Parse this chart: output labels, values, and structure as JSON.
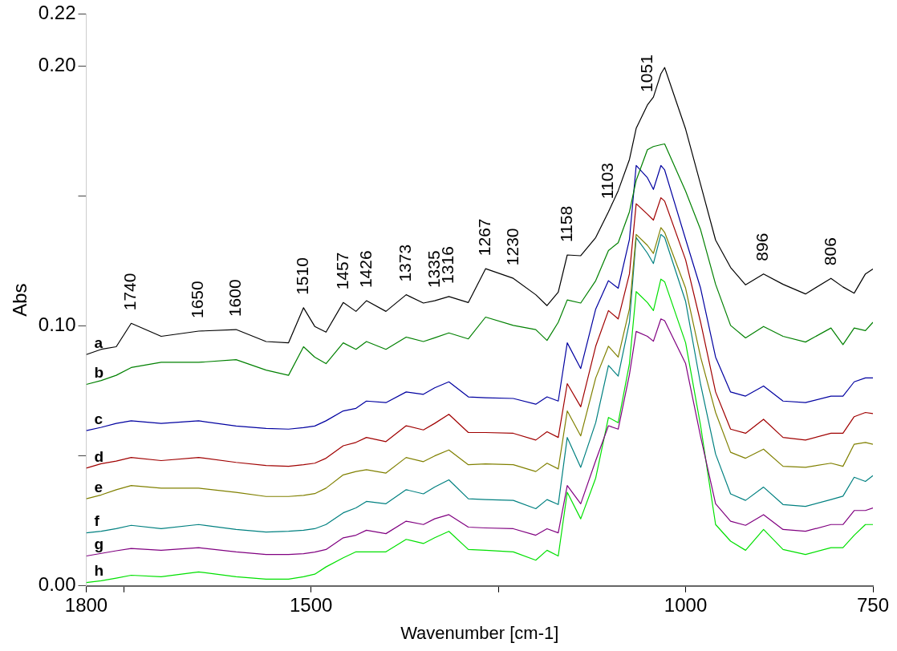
{
  "chart_data": {
    "type": "line",
    "xlabel": "Wavenumber [cm-1]",
    "ylabel": "Abs",
    "x": [
      1800,
      1780,
      1760,
      1740,
      1700,
      1650,
      1600,
      1560,
      1530,
      1510,
      1495,
      1480,
      1457,
      1440,
      1426,
      1400,
      1373,
      1350,
      1335,
      1316,
      1290,
      1267,
      1230,
      1200,
      1185,
      1170,
      1158,
      1140,
      1120,
      1103,
      1090,
      1075,
      1066,
      1051,
      1043,
      1033,
      1028,
      1000,
      980,
      960,
      940,
      920,
      896,
      870,
      840,
      806,
      790,
      775,
      760,
      750
    ],
    "xlim": [
      1800,
      750
    ],
    "xticks": [
      1800,
      {
        "value": 1750,
        "label": null
      },
      1500,
      {
        "value": 1250,
        "label": null
      },
      1000,
      750
    ],
    "ylim": [
      0,
      0.22
    ],
    "yticks": [
      {
        "value": 0,
        "label": "0.00"
      },
      {
        "value": 0.05,
        "label": null
      },
      {
        "value": 0.1,
        "label": "0.10"
      },
      {
        "value": 0.15,
        "label": null
      },
      {
        "value": 0.2,
        "label": "0.20"
      },
      0.22
    ],
    "grid": false,
    "legend": false,
    "marker": "none",
    "line_style": "solid",
    "series": [
      {
        "name": "a",
        "color": "#000000",
        "values": [
          0.089,
          0.091,
          0.092,
          0.101,
          0.096,
          0.098,
          0.0986,
          0.094,
          0.0935,
          0.107,
          0.0998,
          0.0976,
          0.109,
          0.1056,
          0.1097,
          0.1056,
          0.112,
          0.1088,
          0.1097,
          0.1113,
          0.109,
          0.122,
          0.1183,
          0.112,
          0.1078,
          0.113,
          0.1273,
          0.127,
          0.134,
          0.1439,
          0.152,
          0.164,
          0.176,
          0.185,
          0.188,
          0.197,
          0.1994,
          0.1757,
          0.1544,
          0.133,
          0.1225,
          0.1158,
          0.12,
          0.116,
          0.1123,
          0.1183,
          0.115,
          0.1126,
          0.12,
          0.1219
        ]
      },
      {
        "name": "b",
        "color": "#008000",
        "values": [
          0.0775,
          0.079,
          0.081,
          0.084,
          0.086,
          0.086,
          0.087,
          0.083,
          0.081,
          0.092,
          0.088,
          0.0855,
          0.0935,
          0.091,
          0.094,
          0.091,
          0.0957,
          0.094,
          0.0954,
          0.0973,
          0.095,
          0.1034,
          0.1002,
          0.0986,
          0.0944,
          0.1014,
          0.11,
          0.1088,
          0.1174,
          0.129,
          0.132,
          0.1439,
          0.156,
          0.1678,
          0.169,
          0.1697,
          0.17,
          0.1518,
          0.137,
          0.116,
          0.1002,
          0.0954,
          0.0998,
          0.096,
          0.0938,
          0.0992,
          0.0928,
          0.0992,
          0.0982,
          0.1014
        ]
      },
      {
        "name": "c",
        "color": "#0000a0",
        "values": [
          0.0597,
          0.061,
          0.0625,
          0.0635,
          0.0625,
          0.0635,
          0.0615,
          0.0606,
          0.0603,
          0.0609,
          0.0615,
          0.0635,
          0.0673,
          0.0683,
          0.0711,
          0.0705,
          0.0746,
          0.0737,
          0.0762,
          0.0785,
          0.0727,
          0.0724,
          0.0721,
          0.0699,
          0.0727,
          0.0711,
          0.0935,
          0.0836,
          0.1065,
          0.1174,
          0.1145,
          0.1333,
          0.1617,
          0.157,
          0.1525,
          0.1617,
          0.16,
          0.1333,
          0.1145,
          0.088,
          0.0746,
          0.073,
          0.0769,
          0.0711,
          0.0705,
          0.073,
          0.073,
          0.0785,
          0.08,
          0.08
        ]
      },
      {
        "name": "d",
        "color": "#a00000",
        "values": [
          0.0453,
          0.047,
          0.048,
          0.0494,
          0.0482,
          0.0494,
          0.0475,
          0.0463,
          0.046,
          0.0466,
          0.0472,
          0.0491,
          0.0539,
          0.0552,
          0.0571,
          0.0555,
          0.0616,
          0.06,
          0.0625,
          0.066,
          0.059,
          0.059,
          0.0587,
          0.0561,
          0.0593,
          0.0571,
          0.0778,
          0.0689,
          0.0922,
          0.1059,
          0.1027,
          0.12,
          0.147,
          0.143,
          0.1407,
          0.1493,
          0.148,
          0.1254,
          0.1014,
          0.0746,
          0.0603,
          0.0587,
          0.0641,
          0.0571,
          0.0561,
          0.0587,
          0.0587,
          0.0651,
          0.0667,
          0.0663
        ]
      },
      {
        "name": "e",
        "color": "#808000",
        "values": [
          0.0335,
          0.035,
          0.037,
          0.0386,
          0.0376,
          0.0376,
          0.036,
          0.0344,
          0.0344,
          0.0348,
          0.0355,
          0.0376,
          0.0427,
          0.044,
          0.0447,
          0.0434,
          0.0494,
          0.0478,
          0.05,
          0.0523,
          0.0466,
          0.0469,
          0.0466,
          0.044,
          0.0472,
          0.045,
          0.0673,
          0.0577,
          0.08,
          0.0922,
          0.088,
          0.1065,
          0.1352,
          0.131,
          0.1279,
          0.1378,
          0.136,
          0.1145,
          0.088,
          0.0667,
          0.0514,
          0.0491,
          0.0526,
          0.046,
          0.0456,
          0.0472,
          0.046,
          0.0545,
          0.0552,
          0.0545
        ]
      },
      {
        "name": "f",
        "color": "#008080",
        "values": [
          0.0204,
          0.021,
          0.022,
          0.0233,
          0.022,
          0.0236,
          0.0217,
          0.0207,
          0.021,
          0.0214,
          0.022,
          0.0236,
          0.0281,
          0.03,
          0.0325,
          0.0316,
          0.037,
          0.0354,
          0.038,
          0.0408,
          0.0335,
          0.0332,
          0.0329,
          0.0297,
          0.0332,
          0.0313,
          0.0571,
          0.0456,
          0.0628,
          0.0848,
          0.0807,
          0.1014,
          0.134,
          0.128,
          0.124,
          0.1352,
          0.134,
          0.1094,
          0.0775,
          0.0507,
          0.0354,
          0.0329,
          0.038,
          0.0313,
          0.0306,
          0.0332,
          0.0345,
          0.0418,
          0.0402,
          0.0424
        ]
      },
      {
        "name": "g",
        "color": "#800080",
        "values": [
          0.0115,
          0.0125,
          0.0135,
          0.0144,
          0.0137,
          0.0147,
          0.0131,
          0.0121,
          0.0121,
          0.0124,
          0.013,
          0.014,
          0.0185,
          0.0195,
          0.0214,
          0.0201,
          0.0249,
          0.0236,
          0.0258,
          0.0274,
          0.0226,
          0.0223,
          0.022,
          0.0195,
          0.022,
          0.0204,
          0.0386,
          0.0316,
          0.0482,
          0.0616,
          0.0603,
          0.0813,
          0.0979,
          0.096,
          0.0941,
          0.1027,
          0.102,
          0.0855,
          0.0574,
          0.0316,
          0.0249,
          0.0233,
          0.0274,
          0.0217,
          0.021,
          0.0236,
          0.0236,
          0.029,
          0.029,
          0.03
        ]
      },
      {
        "name": "h",
        "color": "#00e000",
        "values": [
          0.0013,
          0.002,
          0.003,
          0.0041,
          0.0035,
          0.0054,
          0.0035,
          0.0026,
          0.0026,
          0.0035,
          0.0045,
          0.0073,
          0.0108,
          0.0131,
          0.0131,
          0.0131,
          0.0179,
          0.0163,
          0.0185,
          0.021,
          0.014,
          0.0137,
          0.0131,
          0.0099,
          0.0137,
          0.0115,
          0.036,
          0.0258,
          0.0415,
          0.0648,
          0.0628,
          0.0855,
          0.1132,
          0.109,
          0.1059,
          0.118,
          0.117,
          0.0935,
          0.0616,
          0.0236,
          0.0172,
          0.0137,
          0.0217,
          0.014,
          0.0121,
          0.0147,
          0.0147,
          0.0195,
          0.0236,
          0.0236
        ]
      }
    ],
    "annotations": [
      {
        "text": "1740",
        "x": 1740,
        "y": 0.101
      },
      {
        "text": "1650",
        "x": 1650,
        "y": 0.098
      },
      {
        "text": "1600",
        "x": 1600,
        "y": 0.0986
      },
      {
        "text": "1510",
        "x": 1510,
        "y": 0.107
      },
      {
        "text": "1457",
        "x": 1457,
        "y": 0.109
      },
      {
        "text": "1426",
        "x": 1426,
        "y": 0.1097
      },
      {
        "text": "1373",
        "x": 1373,
        "y": 0.112
      },
      {
        "text": "1335",
        "x": 1335,
        "y": 0.1097
      },
      {
        "text": "1316",
        "x": 1316,
        "y": 0.1113
      },
      {
        "text": "1267",
        "x": 1267,
        "y": 0.122
      },
      {
        "text": "1230",
        "x": 1230,
        "y": 0.1183
      },
      {
        "text": "1158",
        "x": 1158,
        "y": 0.1273
      },
      {
        "text": "1103",
        "x": 1103,
        "y": 0.1439
      },
      {
        "text": "1051",
        "x": 1051,
        "y": 0.185
      },
      {
        "text": "896",
        "x": 896,
        "y": 0.12
      },
      {
        "text": "806",
        "x": 806,
        "y": 0.1183
      }
    ]
  }
}
